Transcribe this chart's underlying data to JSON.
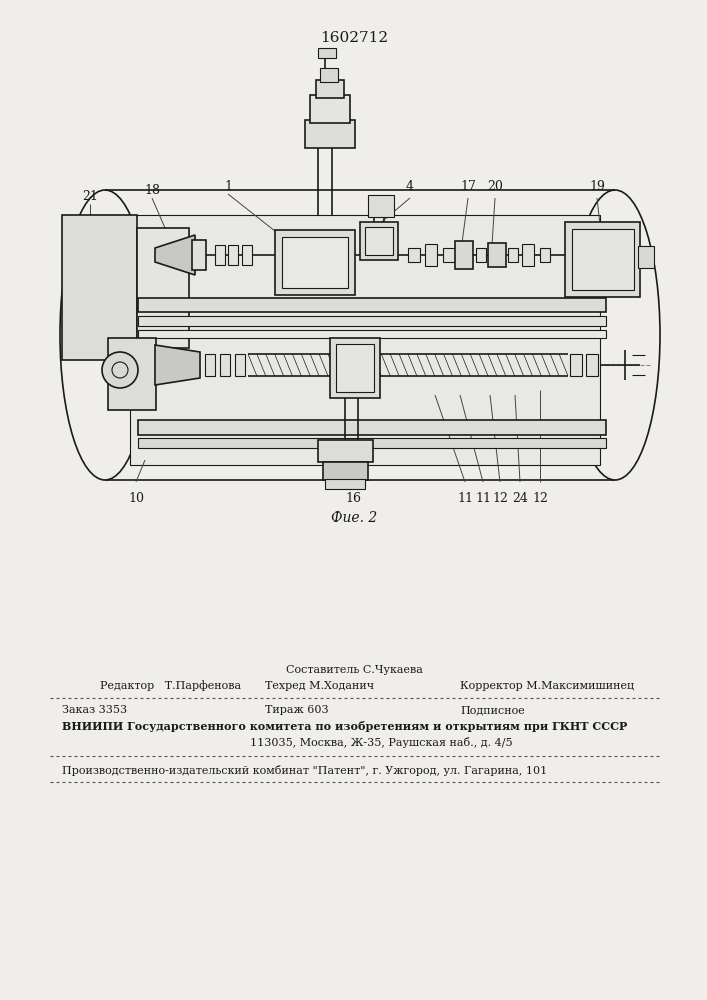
{
  "patent_number": "1602712",
  "fig_label": "Фие. 2",
  "bg_color": "#f0eeea",
  "line_color": "#1a1a1a",
  "page_width": 7.07,
  "page_height": 10.0,
  "footer": {
    "compiler_label": "Составитель С.Чукаева",
    "editor_label": "Редактор   Т.Парфенова",
    "tech_label": "Техред М.Ходанич",
    "corrector_label": "Корректор М.Максимишинец",
    "order_label": "Заказ 3353",
    "circulation_label": "Тираж 603",
    "subscription_label": "Подписное",
    "vniiphi_line1": "ВНИИПИ Государственного комитета по изобретениям и открытиям при ГКНТ СССР",
    "vniiphi_line2": "113035, Москва, Ж-35, Раушская наб., д. 4/5",
    "production_line": "Производственно-издательский комбинат \"Патент\", г. Ужгород, ул. Гагарина, 101"
  }
}
